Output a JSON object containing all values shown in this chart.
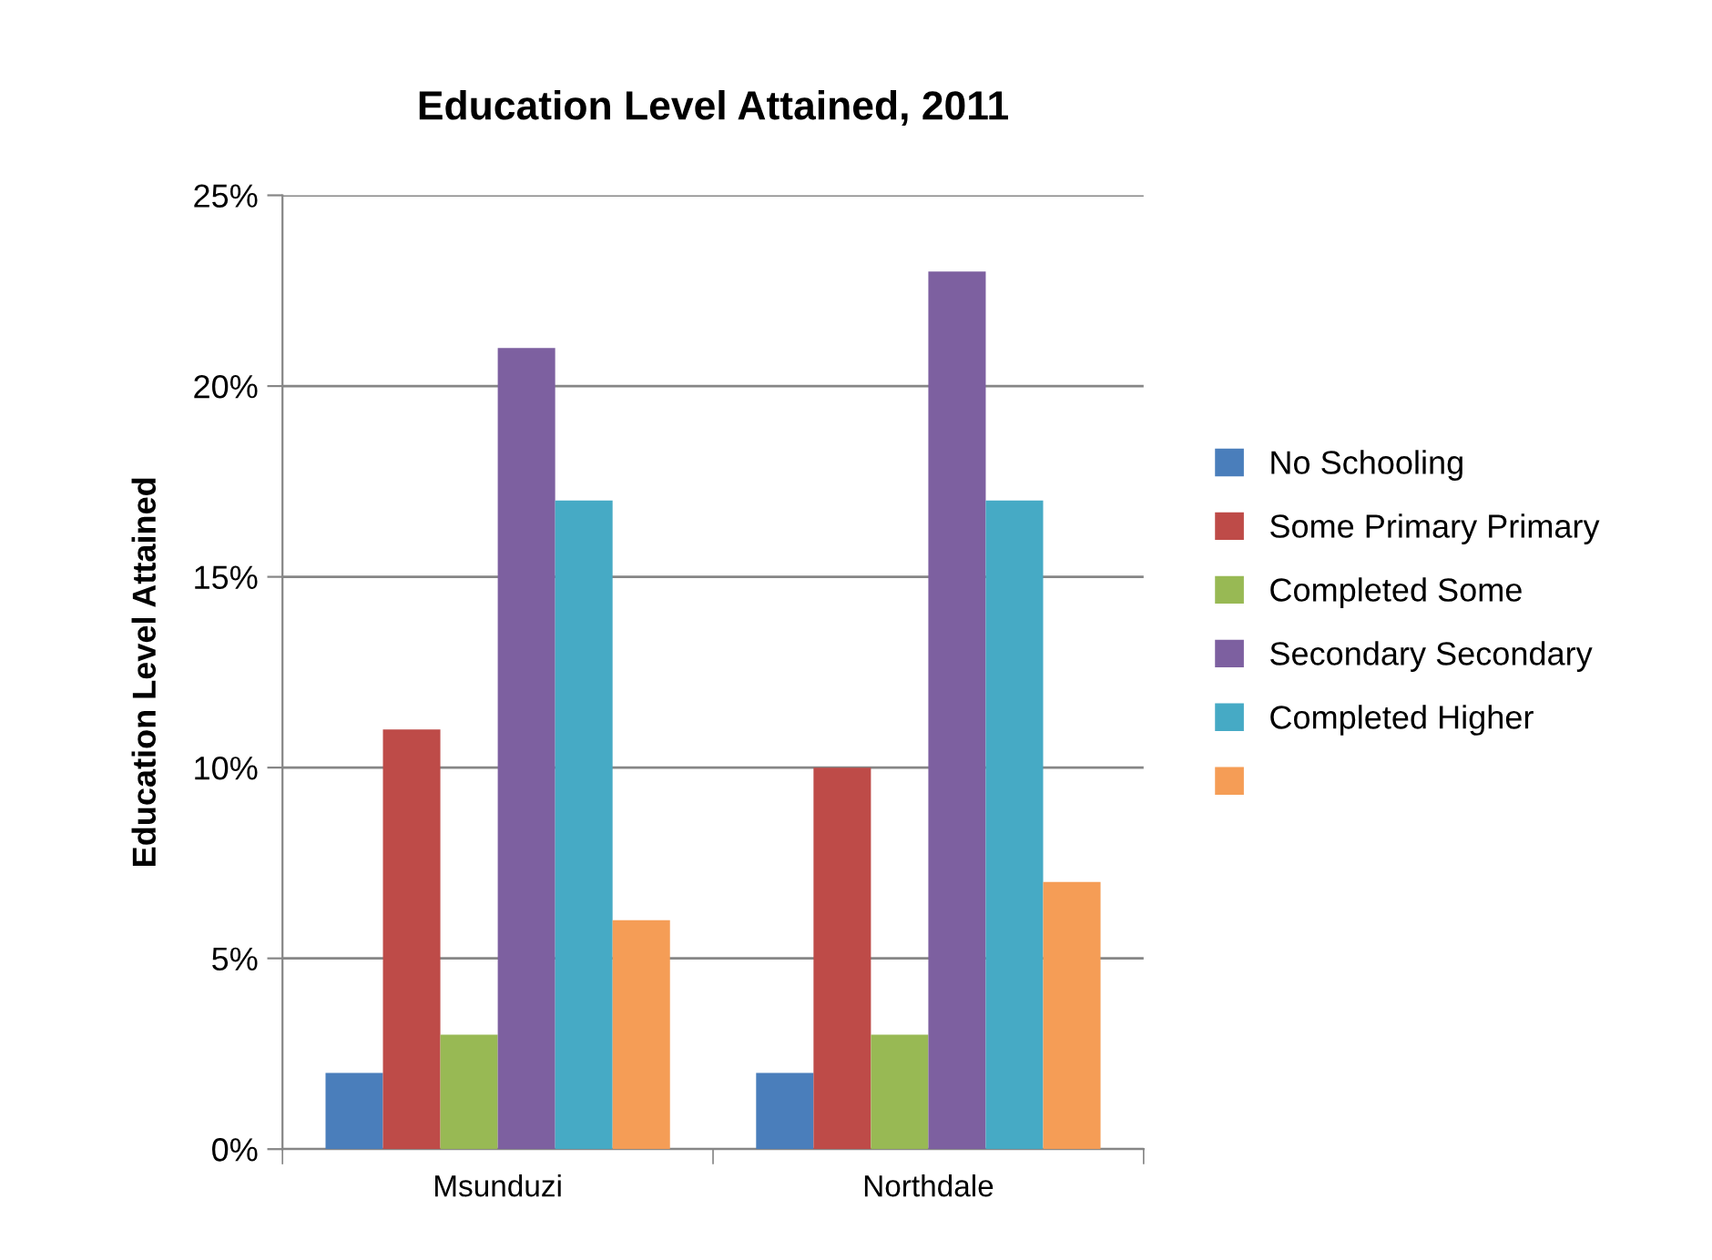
{
  "chart_data": {
    "type": "bar",
    "title": "Education Level Attained, 2011",
    "ylabel": "Education Level Attained",
    "categories": [
      "Msunduzi",
      "Northdale"
    ],
    "series": [
      {
        "name": "No Schooling",
        "color": "#4a7ebb",
        "values": [
          2,
          2
        ]
      },
      {
        "name": "Some Primary Primary",
        "color": "#be4b48",
        "values": [
          11,
          10
        ]
      },
      {
        "name": "Completed Some",
        "color": "#98b954",
        "values": [
          3,
          3
        ]
      },
      {
        "name": "Secondary Secondary",
        "color": "#7d60a0",
        "values": [
          21,
          23
        ]
      },
      {
        "name": "Completed Higher",
        "color": "#46aac5",
        "values": [
          17,
          17
        ]
      },
      {
        "color": "#f59d56",
        "values": [
          6,
          7
        ]
      }
    ],
    "ylim": [
      0,
      25
    ],
    "yticks": [
      {
        "value": 0,
        "label": "0%"
      },
      {
        "value": 5,
        "label": "5%"
      },
      {
        "value": 10,
        "label": "10%"
      },
      {
        "value": 15,
        "label": "15%"
      },
      {
        "value": 20,
        "label": "20%"
      },
      {
        "value": 25,
        "label": "25%"
      }
    ],
    "grid": "y",
    "legend": "right"
  }
}
